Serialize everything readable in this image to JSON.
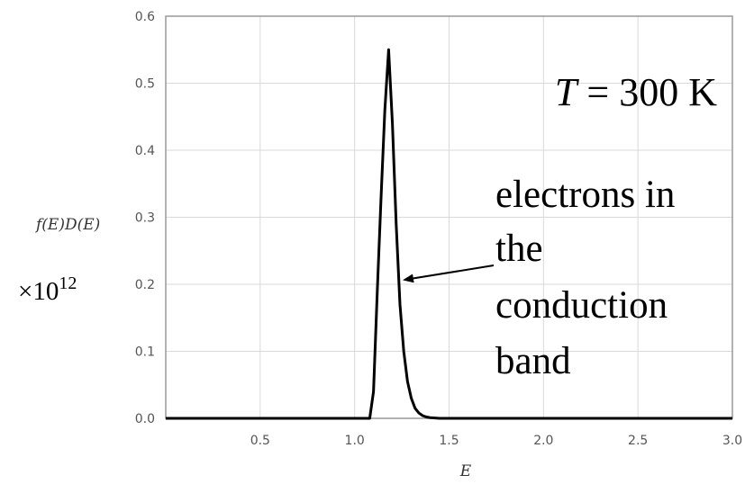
{
  "chart_data": {
    "type": "line",
    "xlabel": "E",
    "ylabel": "f(E)D(E)",
    "ylabel_multiplier": "×10",
    "ylabel_exponent": "12",
    "xlim": [
      0.0,
      3.0
    ],
    "ylim": [
      0.0,
      0.6
    ],
    "x_ticks": [
      "0.5",
      "1.0",
      "1.5",
      "2.0",
      "2.5",
      "3.0"
    ],
    "y_ticks": [
      "0.0",
      "0.1",
      "0.2",
      "0.3",
      "0.4",
      "0.5",
      "0.6"
    ],
    "grid": true,
    "series": [
      {
        "x": [
          0.0,
          1.08,
          1.1,
          1.12,
          1.14,
          1.16,
          1.18,
          1.2,
          1.22,
          1.24,
          1.26,
          1.28,
          1.3,
          1.32,
          1.34,
          1.36,
          1.38,
          1.4,
          1.45,
          3.0
        ],
        "y": [
          0.0,
          0.0,
          0.04,
          0.19,
          0.33,
          0.46,
          0.55,
          0.44,
          0.29,
          0.17,
          0.1,
          0.055,
          0.03,
          0.015,
          0.008,
          0.004,
          0.002,
          0.001,
          0.0,
          0.0
        ]
      }
    ],
    "annotations": {
      "temperature": "T = 300 K",
      "temperature_symbol": "T",
      "temperature_value": " = 300 K",
      "label_lines": [
        "electrons in",
        "the",
        "conduction",
        "band"
      ]
    },
    "colors": {
      "line": "#000000",
      "grid": "#d9d9d9",
      "frame": "#999999",
      "text": "#000000"
    }
  }
}
